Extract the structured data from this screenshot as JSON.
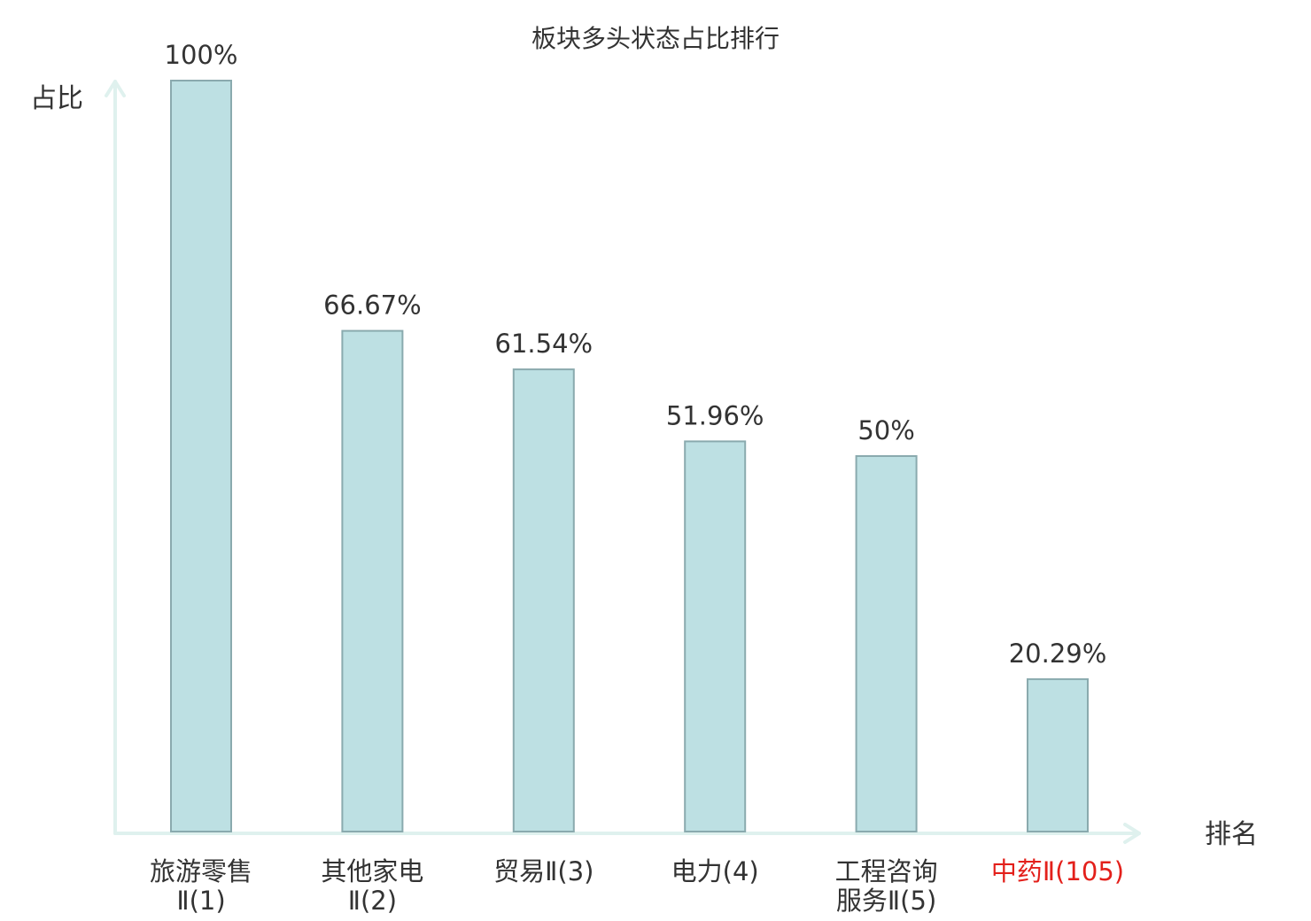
{
  "chart_data": {
    "type": "bar",
    "title": "板块多头状态占比排行",
    "ylabel": "占比",
    "xlabel": "排名",
    "ylim": [
      0,
      100
    ],
    "grid": false,
    "categories": [
      [
        "旅游零售",
        "Ⅱ(1)"
      ],
      [
        "其他家电",
        "Ⅱ(2)"
      ],
      [
        "贸易Ⅱ(3)"
      ],
      [
        "电力(4)"
      ],
      [
        "工程咨询",
        "服务Ⅱ(5)"
      ],
      [
        "中药Ⅱ(105)"
      ]
    ],
    "values": [
      100,
      66.67,
      61.54,
      51.96,
      50,
      20.29
    ],
    "value_labels": [
      "100%",
      "66.67%",
      "61.54%",
      "51.96%",
      "50%",
      "20.29%"
    ],
    "highlight_index": 5
  },
  "colors": {
    "bar_fill": "#bde0e3",
    "bar_stroke": "#8aaaae",
    "axis": "#dff1ee",
    "text": "#333333",
    "highlight": "#e3201b"
  }
}
